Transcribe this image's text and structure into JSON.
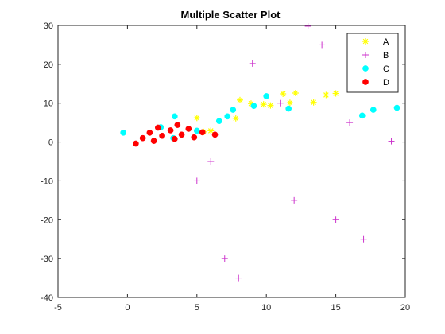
{
  "chart_data": {
    "type": "scatter",
    "title": "Multiple Scatter Plot",
    "xlabel": "",
    "ylabel": "",
    "xlim": [
      -5,
      20
    ],
    "ylim": [
      -40,
      30
    ],
    "xticks": [
      -5,
      0,
      5,
      10,
      15,
      20
    ],
    "yticks": [
      -40,
      -30,
      -20,
      -10,
      0,
      10,
      20,
      30
    ],
    "grid": false,
    "legend_position": "top-right",
    "series": [
      {
        "name": "A",
        "marker": "asterisk",
        "color": "#ffff00",
        "points": [
          [
            5.0,
            6.2
          ],
          [
            5.5,
            2.6
          ],
          [
            6.0,
            2.9
          ],
          [
            7.8,
            6.1
          ],
          [
            8.1,
            10.8
          ],
          [
            8.9,
            9.9
          ],
          [
            9.8,
            9.7
          ],
          [
            10.3,
            9.4
          ],
          [
            11.2,
            12.4
          ],
          [
            11.7,
            10.1
          ],
          [
            12.1,
            12.6
          ],
          [
            13.4,
            10.2
          ],
          [
            14.3,
            12.1
          ],
          [
            15.0,
            12.5
          ]
        ]
      },
      {
        "name": "B",
        "marker": "plus",
        "color": "#cc33cc",
        "points": [
          [
            5.0,
            -10.0
          ],
          [
            6.0,
            -5.0
          ],
          [
            7.0,
            -30.0
          ],
          [
            8.0,
            -35.0
          ],
          [
            9.0,
            20.2
          ],
          [
            11.0,
            10.0
          ],
          [
            12.0,
            -15.0
          ],
          [
            13.0,
            29.8
          ],
          [
            14.0,
            25.0
          ],
          [
            15.0,
            -20.0
          ],
          [
            16.0,
            5.0
          ],
          [
            17.0,
            -25.0
          ],
          [
            19.0,
            0.2
          ]
        ]
      },
      {
        "name": "C",
        "marker": "circle",
        "color": "#00ffff",
        "points": [
          [
            -0.3,
            2.4
          ],
          [
            2.4,
            3.8
          ],
          [
            3.3,
            1.0
          ],
          [
            3.4,
            6.6
          ],
          [
            5.0,
            2.9
          ],
          [
            6.6,
            5.4
          ],
          [
            7.2,
            6.6
          ],
          [
            7.6,
            8.3
          ],
          [
            9.1,
            9.3
          ],
          [
            10.0,
            11.8
          ],
          [
            11.6,
            8.6
          ],
          [
            16.9,
            6.8
          ],
          [
            17.7,
            8.3
          ],
          [
            19.4,
            8.8
          ]
        ]
      },
      {
        "name": "D",
        "marker": "circle",
        "color": "#ff0000",
        "points": [
          [
            0.6,
            -0.4
          ],
          [
            1.1,
            1.0
          ],
          [
            1.6,
            2.4
          ],
          [
            1.9,
            0.3
          ],
          [
            2.2,
            3.7
          ],
          [
            2.5,
            1.6
          ],
          [
            3.1,
            3.0
          ],
          [
            3.4,
            0.8
          ],
          [
            3.6,
            4.4
          ],
          [
            3.9,
            1.9
          ],
          [
            4.4,
            3.4
          ],
          [
            4.8,
            1.2
          ],
          [
            5.4,
            2.5
          ],
          [
            6.3,
            1.9
          ]
        ]
      }
    ]
  }
}
